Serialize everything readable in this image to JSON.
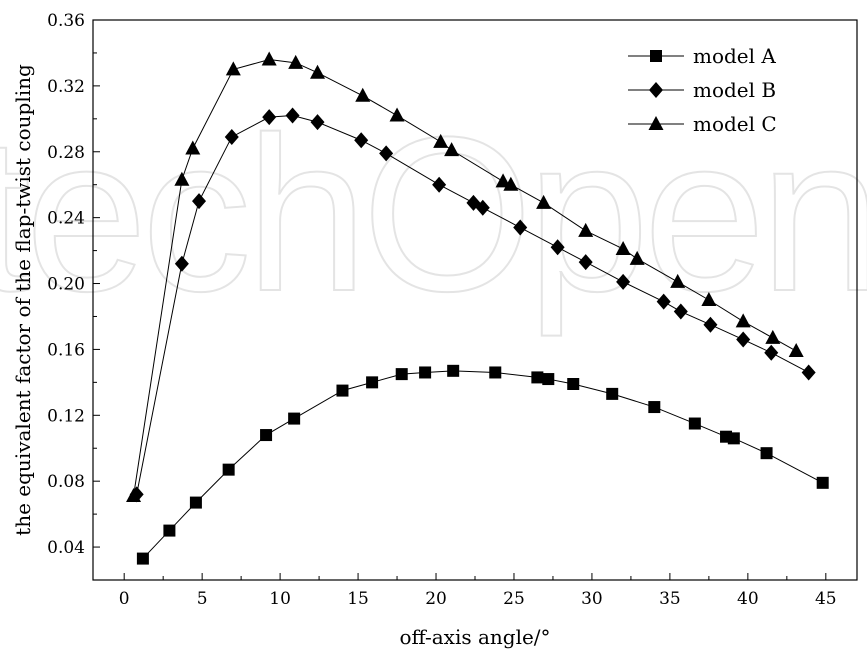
{
  "chart_data": {
    "type": "line",
    "xlabel": "off-axis angle/°",
    "ylabel": "the equivalent  factor of the flap-twist coupling",
    "xlim": [
      -2,
      47
    ],
    "ylim": [
      0.02,
      0.36
    ],
    "xticks": [
      0,
      5,
      10,
      15,
      20,
      25,
      30,
      35,
      40,
      45
    ],
    "yticks": [
      0.04,
      0.08,
      0.12,
      0.16,
      0.2,
      0.24,
      0.28,
      0.32,
      0.36
    ],
    "ytick_labels": [
      "0.04",
      "0.08",
      "0.12",
      "0.16",
      "0.20",
      "0.24",
      "0.28",
      "0.32",
      "0.36"
    ],
    "legend_position": "top-right",
    "grid": false,
    "watermark": "techOpen",
    "series": [
      {
        "name": "model A",
        "marker": "square",
        "x": [
          1.2,
          2.9,
          4.6,
          6.7,
          9.1,
          10.9,
          14.0,
          15.9,
          17.8,
          19.3,
          21.1,
          23.8,
          26.5,
          27.2,
          28.8,
          31.3,
          34.0,
          36.6,
          38.6,
          39.1,
          41.2,
          44.8
        ],
        "y": [
          0.033,
          0.05,
          0.067,
          0.087,
          0.108,
          0.118,
          0.135,
          0.14,
          0.145,
          0.146,
          0.147,
          0.146,
          0.143,
          0.142,
          0.139,
          0.133,
          0.125,
          0.115,
          0.107,
          0.106,
          0.097,
          0.079
        ]
      },
      {
        "name": "model B",
        "marker": "diamond",
        "x": [
          0.8,
          3.7,
          4.8,
          6.9,
          9.3,
          10.8,
          12.4,
          15.2,
          16.8,
          20.2,
          22.4,
          23.0,
          25.4,
          27.8,
          29.6,
          32.0,
          34.6,
          35.7,
          37.6,
          39.7,
          41.5,
          43.9
        ],
        "y": [
          0.072,
          0.212,
          0.25,
          0.289,
          0.301,
          0.302,
          0.298,
          0.287,
          0.279,
          0.26,
          0.249,
          0.246,
          0.234,
          0.222,
          0.213,
          0.201,
          0.189,
          0.183,
          0.175,
          0.166,
          0.158,
          0.146
        ]
      },
      {
        "name": "model C",
        "marker": "triangle",
        "x": [
          0.6,
          3.7,
          4.4,
          7.0,
          9.3,
          11.0,
          12.4,
          15.3,
          17.5,
          20.3,
          21.0,
          24.3,
          24.8,
          26.9,
          29.6,
          32.0,
          32.9,
          35.5,
          37.5,
          39.7,
          41.6,
          43.1
        ],
        "y": [
          0.071,
          0.263,
          0.282,
          0.33,
          0.336,
          0.334,
          0.328,
          0.314,
          0.302,
          0.286,
          0.281,
          0.262,
          0.26,
          0.249,
          0.232,
          0.221,
          0.215,
          0.201,
          0.19,
          0.177,
          0.167,
          0.159
        ]
      }
    ]
  }
}
